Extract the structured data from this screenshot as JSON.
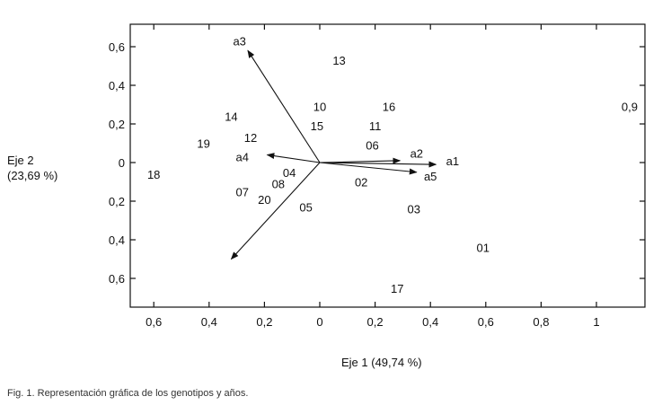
{
  "chart_data": {
    "type": "scatter",
    "title": "",
    "xlabel": "Eje 1 (49,74 %)",
    "ylabel_line1": "Eje 2",
    "ylabel_line2": "(23,69 %)",
    "xlim": [
      -0.7,
      1.2
    ],
    "ylim": [
      -0.75,
      0.7
    ],
    "x_ticks": [
      {
        "value": -0.6,
        "label": "0,6"
      },
      {
        "value": -0.4,
        "label": "0,4"
      },
      {
        "value": -0.2,
        "label": "0,2"
      },
      {
        "value": 0,
        "label": "0"
      },
      {
        "value": 0.2,
        "label": "0,2"
      },
      {
        "value": 0.4,
        "label": "0,4"
      },
      {
        "value": 0.6,
        "label": "0,6"
      },
      {
        "value": 0.8,
        "label": "0,8"
      },
      {
        "value": 1.0,
        "label": "1"
      }
    ],
    "y_ticks": [
      {
        "value": 0.6,
        "label": "0,6"
      },
      {
        "value": 0.4,
        "label": "0,4"
      },
      {
        "value": 0.2,
        "label": "0,2"
      },
      {
        "value": 0,
        "label": "0"
      },
      {
        "value": -0.2,
        "label": "0,2"
      },
      {
        "value": -0.4,
        "label": "0,4"
      },
      {
        "value": -0.6,
        "label": "0,6"
      }
    ],
    "points": [
      {
        "label": "0,9",
        "x": 1.12,
        "y": 0.29
      },
      {
        "label": "13",
        "x": 0.07,
        "y": 0.53
      },
      {
        "label": "10",
        "x": 0.0,
        "y": 0.29
      },
      {
        "label": "16",
        "x": 0.25,
        "y": 0.29
      },
      {
        "label": "14",
        "x": -0.32,
        "y": 0.24
      },
      {
        "label": "15",
        "x": -0.01,
        "y": 0.19
      },
      {
        "label": "11",
        "x": 0.2,
        "y": 0.19
      },
      {
        "label": "12",
        "x": -0.25,
        "y": 0.13
      },
      {
        "label": "19",
        "x": -0.42,
        "y": 0.1
      },
      {
        "label": "06",
        "x": 0.19,
        "y": 0.09
      },
      {
        "label": "18",
        "x": -0.6,
        "y": -0.06
      },
      {
        "label": "04",
        "x": -0.11,
        "y": -0.05
      },
      {
        "label": "08",
        "x": -0.15,
        "y": -0.11
      },
      {
        "label": "02",
        "x": 0.15,
        "y": -0.1
      },
      {
        "label": "07",
        "x": -0.28,
        "y": -0.15
      },
      {
        "label": "20",
        "x": -0.2,
        "y": -0.19
      },
      {
        "label": "05",
        "x": -0.05,
        "y": -0.23
      },
      {
        "label": "03",
        "x": 0.34,
        "y": -0.24
      },
      {
        "label": "01",
        "x": 0.59,
        "y": -0.44
      },
      {
        "label": "17",
        "x": 0.28,
        "y": -0.65
      }
    ],
    "vectors": [
      {
        "label": "a3",
        "x": -0.26,
        "y": 0.58,
        "label_dx": -0.03,
        "label_dy": 0.05
      },
      {
        "label": "a1",
        "x": 0.42,
        "y": -0.01,
        "label_dx": 0.06,
        "label_dy": 0.02
      },
      {
        "label": "a2",
        "x": 0.29,
        "y": 0.01,
        "label_dx": 0.06,
        "label_dy": 0.04
      },
      {
        "label": "a5",
        "x": 0.35,
        "y": -0.05,
        "label_dx": 0.05,
        "label_dy": -0.02
      },
      {
        "label": "a4",
        "x": -0.19,
        "y": 0.04,
        "label_dx": -0.09,
        "label_dy": -0.01
      },
      {
        "label": "",
        "x": -0.32,
        "y": -0.5,
        "label_dx": 0,
        "label_dy": 0
      }
    ],
    "grid": false,
    "legend": "none"
  },
  "caption": "Fig. 1. Representación gráfica de los genotipos y años."
}
